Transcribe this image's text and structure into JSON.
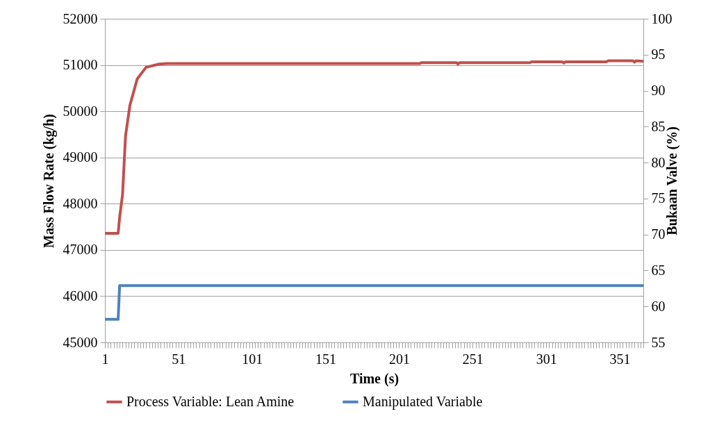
{
  "chart_data": {
    "type": "line",
    "xlabel": "Time (s)",
    "ylabel": "Mass Flow Rate (kg/h)",
    "y2label": "Bukaan Valve (%)",
    "xlim": [
      1,
      367
    ],
    "xticks": [
      1,
      51,
      101,
      151,
      201,
      251,
      301,
      351
    ],
    "ylim": [
      45000,
      52000
    ],
    "yticks": [
      45000,
      46000,
      47000,
      48000,
      49000,
      50000,
      51000,
      52000
    ],
    "y2lim": [
      55,
      100
    ],
    "y2ticks": [
      55,
      60,
      65,
      70,
      75,
      80,
      85,
      90,
      95,
      100
    ],
    "grid": "y",
    "legend": "bottom",
    "marker": "none",
    "line_style": "solid",
    "series": [
      {
        "name": "Process Variable: Lean Amine",
        "color": "#c0504d",
        "x": [
          1,
          10,
          11,
          13,
          15,
          18,
          23,
          29,
          38,
          43,
          215,
          216,
          240,
          241,
          242,
          290,
          291,
          312,
          313,
          314,
          342,
          343,
          360,
          361,
          362,
          367
        ],
        "values": [
          47360,
          47360,
          47700,
          48200,
          49460,
          50130,
          50700,
          50950,
          51020,
          51030,
          51030,
          51050,
          51050,
          51020,
          51050,
          51050,
          51070,
          51070,
          51040,
          51070,
          51070,
          51090,
          51090,
          51060,
          51090,
          51080
        ]
      },
      {
        "name": "Manipulated Variable",
        "color": "#4f81bd",
        "axis": "y2",
        "x": [
          1,
          10,
          11,
          367
        ],
        "values": [
          58.2,
          58.2,
          62.9,
          62.9
        ]
      }
    ]
  }
}
